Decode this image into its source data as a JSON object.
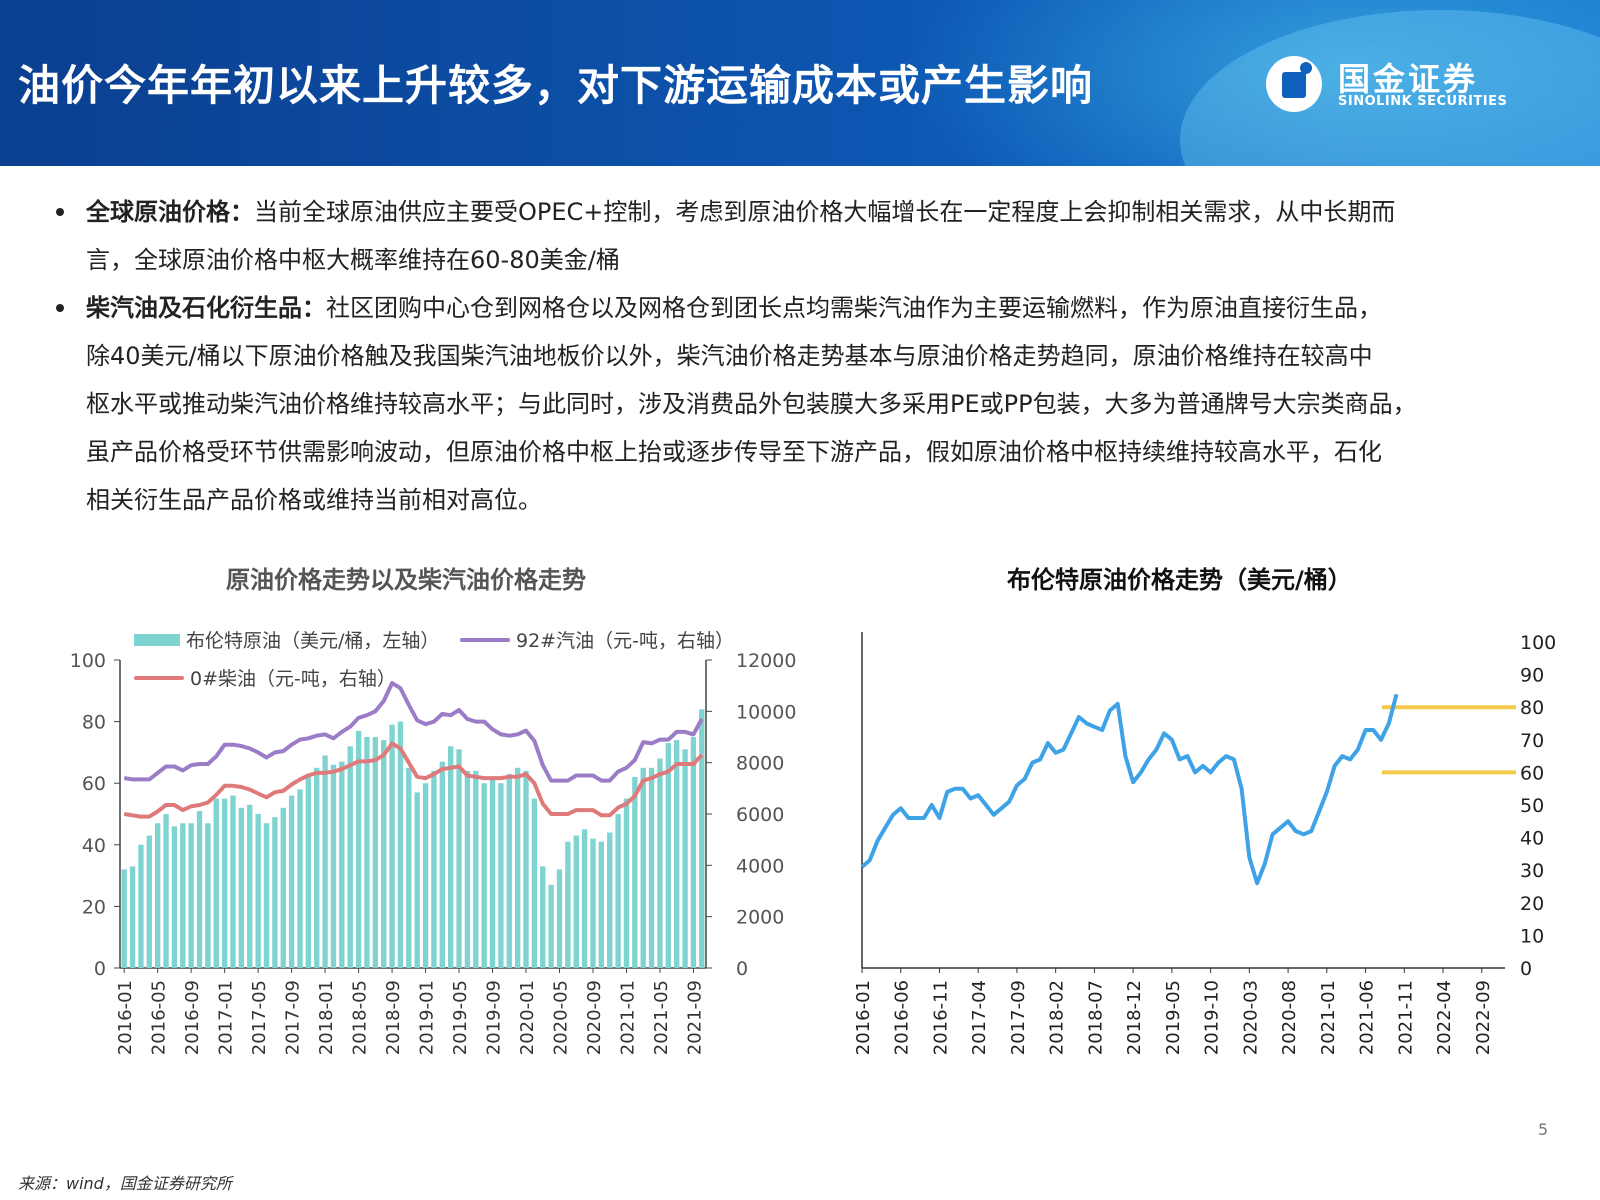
{
  "header": {
    "title": "油价今年年初以来上升较多，对下游运输成本或产生影响",
    "logo_cn": "国金证券",
    "logo_en": "SINOLINK SECURITIES"
  },
  "bullets": [
    {
      "label": "全球原油价格：",
      "lines": [
        "当前全球原油供应主要受OPEC+控制，考虑到原油价格大幅增长在一定程度上会抑制相关需求，从中长期而",
        "言，全球原油价格中枢大概率维持在60-80美金/桶"
      ]
    },
    {
      "label": "柴汽油及石化衍生品：",
      "lines": [
        "社区团购中心仓到网格仓以及网格仓到团长点均需柴汽油作为主要运输燃料，作为原油直接衍生品，",
        "除40美元/桶以下原油价格触及我国柴汽油地板价以外，柴汽油价格走势基本与原油价格走势趋同，原油价格维持在较高中",
        "枢水平或推动柴汽油价格维持较高水平；与此同时，涉及消费品外包装膜大多采用PE或PP包装，大多为普通牌号大宗类商品，",
        "虽产品价格受环节供需影响波动，但原油价格中枢上抬或逐步传导至下游产品，假如原油价格中枢持续维持较高水平，石化",
        "相关衍生品产品价格或维持当前相对高位。"
      ]
    }
  ],
  "chart_data": [
    {
      "type": "bar",
      "title": "原油价格走势以及柴汽油价格走势",
      "x": [
        "2016-01",
        "2016-02",
        "2016-03",
        "2016-04",
        "2016-05",
        "2016-06",
        "2016-07",
        "2016-08",
        "2016-09",
        "2016-10",
        "2016-11",
        "2016-12",
        "2017-01",
        "2017-02",
        "2017-03",
        "2017-04",
        "2017-05",
        "2017-06",
        "2017-07",
        "2017-08",
        "2017-09",
        "2017-10",
        "2017-11",
        "2017-12",
        "2018-01",
        "2018-02",
        "2018-03",
        "2018-04",
        "2018-05",
        "2018-06",
        "2018-07",
        "2018-08",
        "2018-09",
        "2018-10",
        "2018-11",
        "2018-12",
        "2019-01",
        "2019-02",
        "2019-03",
        "2019-04",
        "2019-05",
        "2019-06",
        "2019-07",
        "2019-08",
        "2019-09",
        "2019-10",
        "2019-11",
        "2019-12",
        "2020-01",
        "2020-02",
        "2020-03",
        "2020-04",
        "2020-05",
        "2020-06",
        "2020-07",
        "2020-08",
        "2020-09",
        "2020-10",
        "2020-11",
        "2020-12",
        "2021-01",
        "2021-02",
        "2021-03",
        "2021-04",
        "2021-05",
        "2021-06",
        "2021-07",
        "2021-08",
        "2021-09",
        "2021-10"
      ],
      "x_tick_labels": [
        "2016-01",
        "2016-05",
        "2016-09",
        "2017-01",
        "2017-05",
        "2017-09",
        "2018-01",
        "2018-05",
        "2018-09",
        "2019-01",
        "2019-05",
        "2019-09",
        "2020-01",
        "2020-05",
        "2020-09",
        "2021-01",
        "2021-05",
        "2021-09"
      ],
      "y_left_lim": [
        0,
        100
      ],
      "y_left_ticks": [
        "0",
        "20",
        "40",
        "60",
        "80",
        "100"
      ],
      "y_right_lim": [
        0,
        12000
      ],
      "y_right_ticks": [
        "0",
        "2000",
        "4000",
        "6000",
        "8000",
        "10000",
        "12000"
      ],
      "series": [
        {
          "name": "布伦特原油（美元/桶，左轴）",
          "type": "bar",
          "axis": "left",
          "color": "#7fd3d1",
          "values": [
            32,
            33,
            40,
            43,
            47,
            50,
            46,
            47,
            47,
            51,
            47,
            55,
            55,
            56,
            52,
            53,
            50,
            47,
            49,
            52,
            56,
            58,
            63,
            65,
            69,
            66,
            67,
            72,
            77,
            75,
            75,
            74,
            79,
            80,
            65,
            57,
            60,
            64,
            67,
            72,
            71,
            64,
            64,
            60,
            62,
            60,
            63,
            65,
            64,
            55,
            33,
            27,
            32,
            41,
            43,
            45,
            42,
            41,
            44,
            50,
            55,
            62,
            65,
            65,
            68,
            73,
            74,
            71,
            75,
            84
          ]
        },
        {
          "name": "92#汽油（元-吨，右轴）",
          "type": "line",
          "axis": "right",
          "color": "#9b7cc7",
          "values": [
            7400,
            7350,
            7350,
            7350,
            7600,
            7850,
            7850,
            7700,
            7900,
            7950,
            7950,
            8250,
            8700,
            8700,
            8650,
            8550,
            8400,
            8200,
            8400,
            8450,
            8700,
            8900,
            8950,
            9050,
            9100,
            8950,
            9200,
            9400,
            9750,
            9850,
            10000,
            10400,
            11100,
            10900,
            10250,
            9650,
            9500,
            9600,
            9900,
            9850,
            10050,
            9700,
            9600,
            9600,
            9300,
            9100,
            9050,
            9100,
            9250,
            8850,
            7900,
            7300,
            7300,
            7300,
            7500,
            7500,
            7500,
            7300,
            7300,
            7650,
            7800,
            8100,
            8800,
            8750,
            8900,
            8900,
            9200,
            9200,
            9100,
            9700
          ]
        },
        {
          "name": "0#柴油（元-吨，右轴）",
          "type": "line",
          "axis": "right",
          "color": "#e07a7a",
          "values": [
            6000,
            5950,
            5900,
            5900,
            6100,
            6350,
            6350,
            6150,
            6300,
            6350,
            6450,
            6750,
            7100,
            7100,
            7050,
            6950,
            6800,
            6650,
            6850,
            6900,
            7150,
            7350,
            7500,
            7600,
            7600,
            7650,
            7750,
            7900,
            8050,
            8050,
            8100,
            8300,
            8750,
            8550,
            8000,
            7450,
            7400,
            7550,
            7750,
            7800,
            7850,
            7500,
            7450,
            7400,
            7400,
            7400,
            7450,
            7450,
            7550,
            7200,
            6400,
            6000,
            6000,
            6000,
            6150,
            6150,
            6150,
            5950,
            5950,
            6250,
            6400,
            6700,
            7300,
            7400,
            7550,
            7650,
            7950,
            7950,
            7950,
            8300
          ]
        }
      ]
    },
    {
      "type": "line",
      "title": "布伦特原油价格走势（美元/桶）",
      "x": [
        "2016-01",
        "2016-02",
        "2016-03",
        "2016-04",
        "2016-05",
        "2016-06",
        "2016-07",
        "2016-08",
        "2016-09",
        "2016-10",
        "2016-11",
        "2016-12",
        "2017-01",
        "2017-02",
        "2017-03",
        "2017-04",
        "2017-05",
        "2017-06",
        "2017-07",
        "2017-08",
        "2017-09",
        "2017-10",
        "2017-11",
        "2017-12",
        "2018-01",
        "2018-02",
        "2018-03",
        "2018-04",
        "2018-05",
        "2018-06",
        "2018-07",
        "2018-08",
        "2018-09",
        "2018-10",
        "2018-11",
        "2018-12",
        "2019-01",
        "2019-02",
        "2019-03",
        "2019-04",
        "2019-05",
        "2019-06",
        "2019-07",
        "2019-08",
        "2019-09",
        "2019-10",
        "2019-11",
        "2019-12",
        "2020-01",
        "2020-02",
        "2020-03",
        "2020-04",
        "2020-05",
        "2020-06",
        "2020-07",
        "2020-08",
        "2020-09",
        "2020-10",
        "2020-11",
        "2020-12",
        "2021-01",
        "2021-02",
        "2021-03",
        "2021-04",
        "2021-05",
        "2021-06",
        "2021-07",
        "2021-08",
        "2021-09",
        "2021-10"
      ],
      "x_tick_labels": [
        "2016-01",
        "2016-06",
        "2016-11",
        "2017-04",
        "2017-09",
        "2018-02",
        "2018-07",
        "2018-12",
        "2019-05",
        "2019-10",
        "2020-03",
        "2020-08",
        "2021-01",
        "2021-06",
        "2021-11",
        "2022-04",
        "2022-09"
      ],
      "x_range": [
        "2016-01",
        "2022-12"
      ],
      "ylim": [
        0,
        100
      ],
      "y_ticks": [
        "0",
        "10",
        "20",
        "30",
        "40",
        "50",
        "60",
        "70",
        "80",
        "90",
        "100"
      ],
      "series": [
        {
          "color": "#3ea2e6",
          "values": [
            31,
            33,
            39,
            43,
            47,
            49,
            46,
            46,
            46,
            50,
            46,
            54,
            55,
            55,
            52,
            53,
            50,
            47,
            49,
            51,
            56,
            58,
            63,
            64,
            69,
            66,
            67,
            72,
            77,
            75,
            74,
            73,
            79,
            81,
            65,
            57,
            60,
            64,
            67,
            72,
            70,
            64,
            65,
            60,
            62,
            60,
            63,
            65,
            64,
            55,
            34,
            26,
            32,
            41,
            43,
            45,
            42,
            41,
            42,
            48,
            54,
            62,
            65,
            64,
            67,
            73,
            73,
            70,
            75,
            84
          ]
        }
      ],
      "reference_lines": [
        {
          "y": 80,
          "color": "#f3c84b"
        },
        {
          "y": 60,
          "color": "#f3c84b"
        }
      ]
    }
  ],
  "footer": {
    "page_number": "5",
    "source": "来源：wind，国金证券研究所"
  }
}
